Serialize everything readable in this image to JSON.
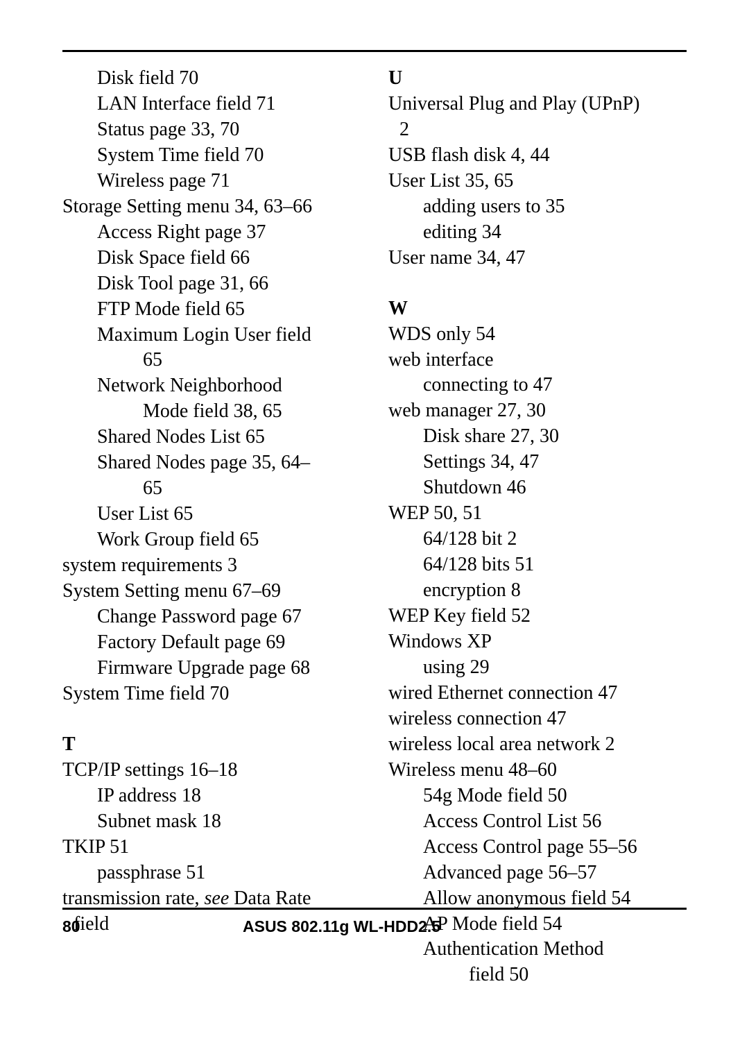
{
  "page": {
    "number": "80",
    "footer_title": "ASUS 802.11g WL-HDD2.5",
    "colors": {
      "text": "#000000",
      "background": "#ffffff",
      "rule": "#000000"
    },
    "typography": {
      "body_font": "Times New Roman",
      "body_size_pt": 21,
      "footer_font": "Arial",
      "footer_size_pt": 17,
      "footer_weight": "bold",
      "section_letter_weight": "bold"
    }
  },
  "left_column": [
    {
      "level": 2,
      "text": "Disk field 70"
    },
    {
      "level": 2,
      "text": "LAN Interface field 71"
    },
    {
      "level": 2,
      "text": "Status page 33, 70"
    },
    {
      "level": 2,
      "text": "System Time field 70"
    },
    {
      "level": 2,
      "text": "Wireless page 71"
    },
    {
      "level": 1,
      "text": "Storage Setting menu 34, 63–66"
    },
    {
      "level": 2,
      "text": "Access Right page 37"
    },
    {
      "level": 2,
      "text": "Disk Space field 66"
    },
    {
      "level": 2,
      "text": "Disk Tool page 31, 66"
    },
    {
      "level": 2,
      "text": "FTP Mode field 65"
    },
    {
      "level": 2,
      "text": "Maximum Login User field"
    },
    {
      "level": 3,
      "text": "65"
    },
    {
      "level": 2,
      "text": "Network Neighborhood"
    },
    {
      "level": 3,
      "text": "Mode field 38, 65"
    },
    {
      "level": 2,
      "text": "Shared Nodes List 65"
    },
    {
      "level": 2,
      "text": "Shared Nodes page 35, 64–"
    },
    {
      "level": 3,
      "text": "65"
    },
    {
      "level": 2,
      "text": "User List 65"
    },
    {
      "level": 2,
      "text": "Work Group field 65"
    },
    {
      "level": 1,
      "text": "system requirements 3"
    },
    {
      "level": 1,
      "text": "System Setting menu 67–69"
    },
    {
      "level": 2,
      "text": "Change Password page 67"
    },
    {
      "level": 2,
      "text": "Factory Default page 69"
    },
    {
      "level": 2,
      "text": "Firmware Upgrade page 68"
    },
    {
      "level": 1,
      "text": "System Time field 70"
    },
    {
      "type": "section",
      "text": "T"
    },
    {
      "level": 1,
      "text": "TCP/IP settings 16–18"
    },
    {
      "level": 2,
      "text": "IP address 18"
    },
    {
      "level": 2,
      "text": "Subnet mask 18"
    },
    {
      "level": 1,
      "text": "TKIP 51"
    },
    {
      "level": 2,
      "text": "passphrase 51"
    },
    {
      "level": 1,
      "html": "transmission rate, <em class=\"see\">see</em> Data Rate"
    },
    {
      "level": "cont",
      "text": "field"
    }
  ],
  "right_column": [
    {
      "type": "section",
      "first": true,
      "text": "U"
    },
    {
      "level": 1,
      "text": "Universal Plug and Play (UPnP)"
    },
    {
      "level": "cont",
      "text": "2"
    },
    {
      "level": 1,
      "text": "USB flash disk 4, 44"
    },
    {
      "level": 1,
      "text": "User List 35, 65"
    },
    {
      "level": 2,
      "text": "adding users to 35"
    },
    {
      "level": 2,
      "text": "editing 34"
    },
    {
      "level": 1,
      "text": "User name 34, 47"
    },
    {
      "type": "section",
      "text": "W"
    },
    {
      "level": 1,
      "text": "WDS only 54"
    },
    {
      "level": 1,
      "text": "web interface"
    },
    {
      "level": 2,
      "text": "connecting to 47"
    },
    {
      "level": 1,
      "text": "web manager 27, 30"
    },
    {
      "level": 2,
      "text": "Disk share 27, 30"
    },
    {
      "level": 2,
      "text": "Settings 34, 47"
    },
    {
      "level": 2,
      "text": "Shutdown 46"
    },
    {
      "level": 1,
      "text": "WEP 50, 51"
    },
    {
      "level": 2,
      "text": "64/128 bit 2"
    },
    {
      "level": 2,
      "text": "64/128 bits 51"
    },
    {
      "level": 2,
      "text": "encryption 8"
    },
    {
      "level": 1,
      "text": "WEP Key field 52"
    },
    {
      "level": 1,
      "text": "Windows XP"
    },
    {
      "level": 2,
      "text": "using 29"
    },
    {
      "level": 1,
      "text": "wired Ethernet connection 47"
    },
    {
      "level": 1,
      "text": "wireless connection 47"
    },
    {
      "level": 1,
      "text": "wireless local area network 2"
    },
    {
      "level": 1,
      "text": "Wireless menu 48–60"
    },
    {
      "level": 2,
      "text": "54g Mode field 50"
    },
    {
      "level": 2,
      "text": "Access Control List 56"
    },
    {
      "level": 2,
      "text": "Access Control page 55–56"
    },
    {
      "level": 2,
      "text": "Advanced page 56–57"
    },
    {
      "level": 2,
      "text": "Allow anonymous field 54"
    },
    {
      "level": 2,
      "text": "AP Mode field 54"
    },
    {
      "level": 2,
      "text": "Authentication Method"
    },
    {
      "level": 3,
      "text": "field 50"
    }
  ]
}
